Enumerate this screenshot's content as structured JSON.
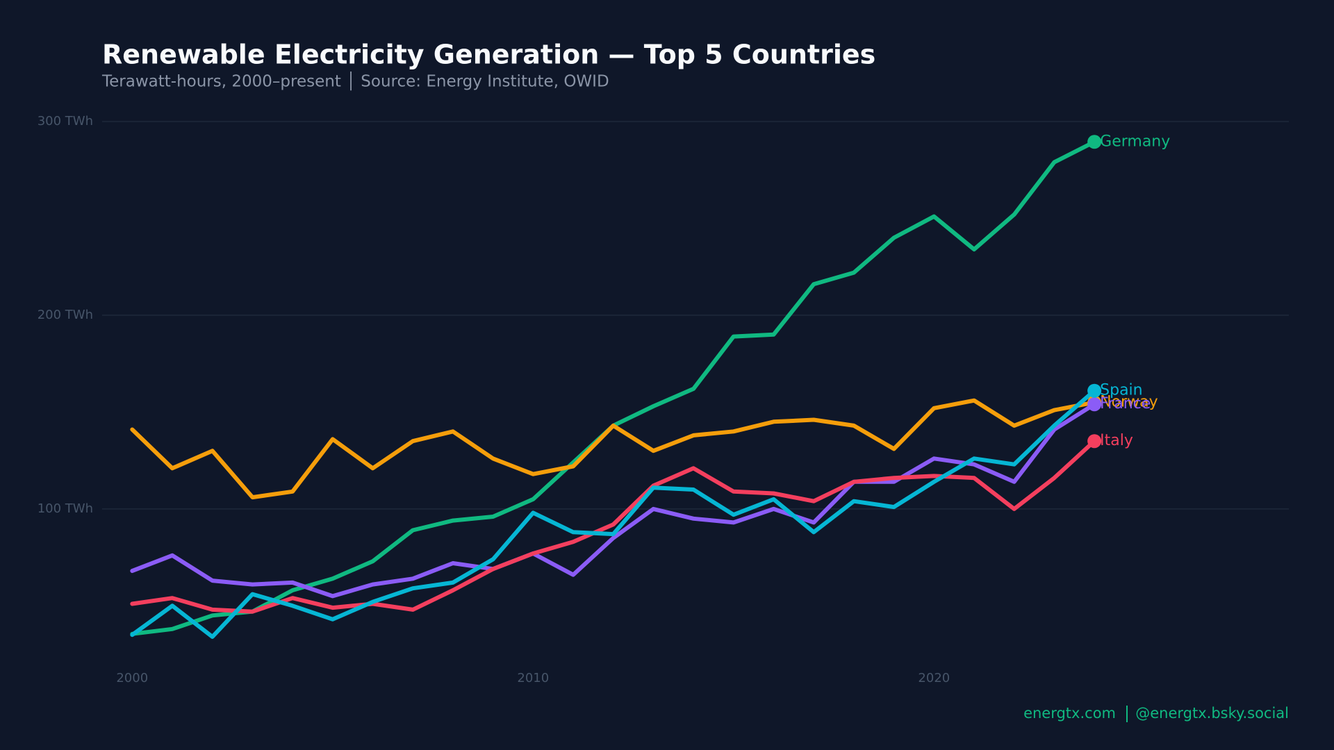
{
  "chart_data": {
    "type": "line",
    "title": "Renewable Electricity Generation — Top 5 Countries",
    "subtitle": "Terawatt-hours, 2000–present  │  Source: Energy Institute, OWID",
    "footer_left": "energtx.com",
    "footer_right": "@energtx.bsky.social",
    "x": [
      2000,
      2001,
      2002,
      2003,
      2004,
      2005,
      2006,
      2007,
      2008,
      2009,
      2010,
      2011,
      2012,
      2013,
      2014,
      2015,
      2016,
      2017,
      2018,
      2019,
      2020,
      2021,
      2022,
      2023,
      2024
    ],
    "xlim": [
      1999.25,
      2028.85
    ],
    "xticks": [
      2000,
      2010,
      2020
    ],
    "ylim": [
      20,
      300
    ],
    "yticks": [
      {
        "value": 100,
        "label": "100 TWh"
      },
      {
        "value": 200,
        "label": "200 TWh"
      },
      {
        "value": 300,
        "label": "300 TWh"
      }
    ],
    "grid": true,
    "series": [
      {
        "name": "Germany",
        "color": "#10b981",
        "values": [
          35.5,
          38,
          45,
          47,
          58,
          64,
          73,
          89,
          94,
          96,
          105,
          124,
          143,
          153,
          162,
          189,
          190,
          216,
          222,
          240,
          251,
          234,
          252,
          279,
          289.5
        ]
      },
      {
        "name": "Norway",
        "color": "#f59e0b",
        "values": [
          141,
          121,
          130,
          106,
          109,
          136,
          121,
          135,
          140,
          126,
          118,
          122,
          143,
          130,
          138,
          140,
          145,
          146,
          143,
          131,
          152,
          156,
          143,
          151,
          155
        ]
      },
      {
        "name": "France",
        "color": "#8b5cf6",
        "values": [
          68,
          76,
          63,
          61,
          62,
          55,
          61,
          64,
          72,
          69,
          77,
          66,
          85,
          100,
          95,
          93,
          100,
          93,
          114,
          114,
          126,
          123,
          114,
          141,
          154
        ]
      },
      {
        "name": "Italy",
        "color": "#f43f5e",
        "values": [
          51,
          54,
          48,
          47,
          54,
          49,
          51,
          48,
          58,
          69,
          77,
          83,
          92,
          112,
          121,
          109,
          108,
          104,
          114,
          116,
          117,
          116,
          100,
          116,
          135
        ]
      },
      {
        "name": "Spain",
        "color": "#06b6d4",
        "values": [
          35,
          50,
          34,
          56,
          50,
          43,
          52,
          59,
          62,
          74,
          98,
          88,
          87,
          111,
          110,
          97,
          105,
          88,
          104,
          101,
          114,
          126,
          123,
          143,
          161
        ]
      }
    ]
  }
}
